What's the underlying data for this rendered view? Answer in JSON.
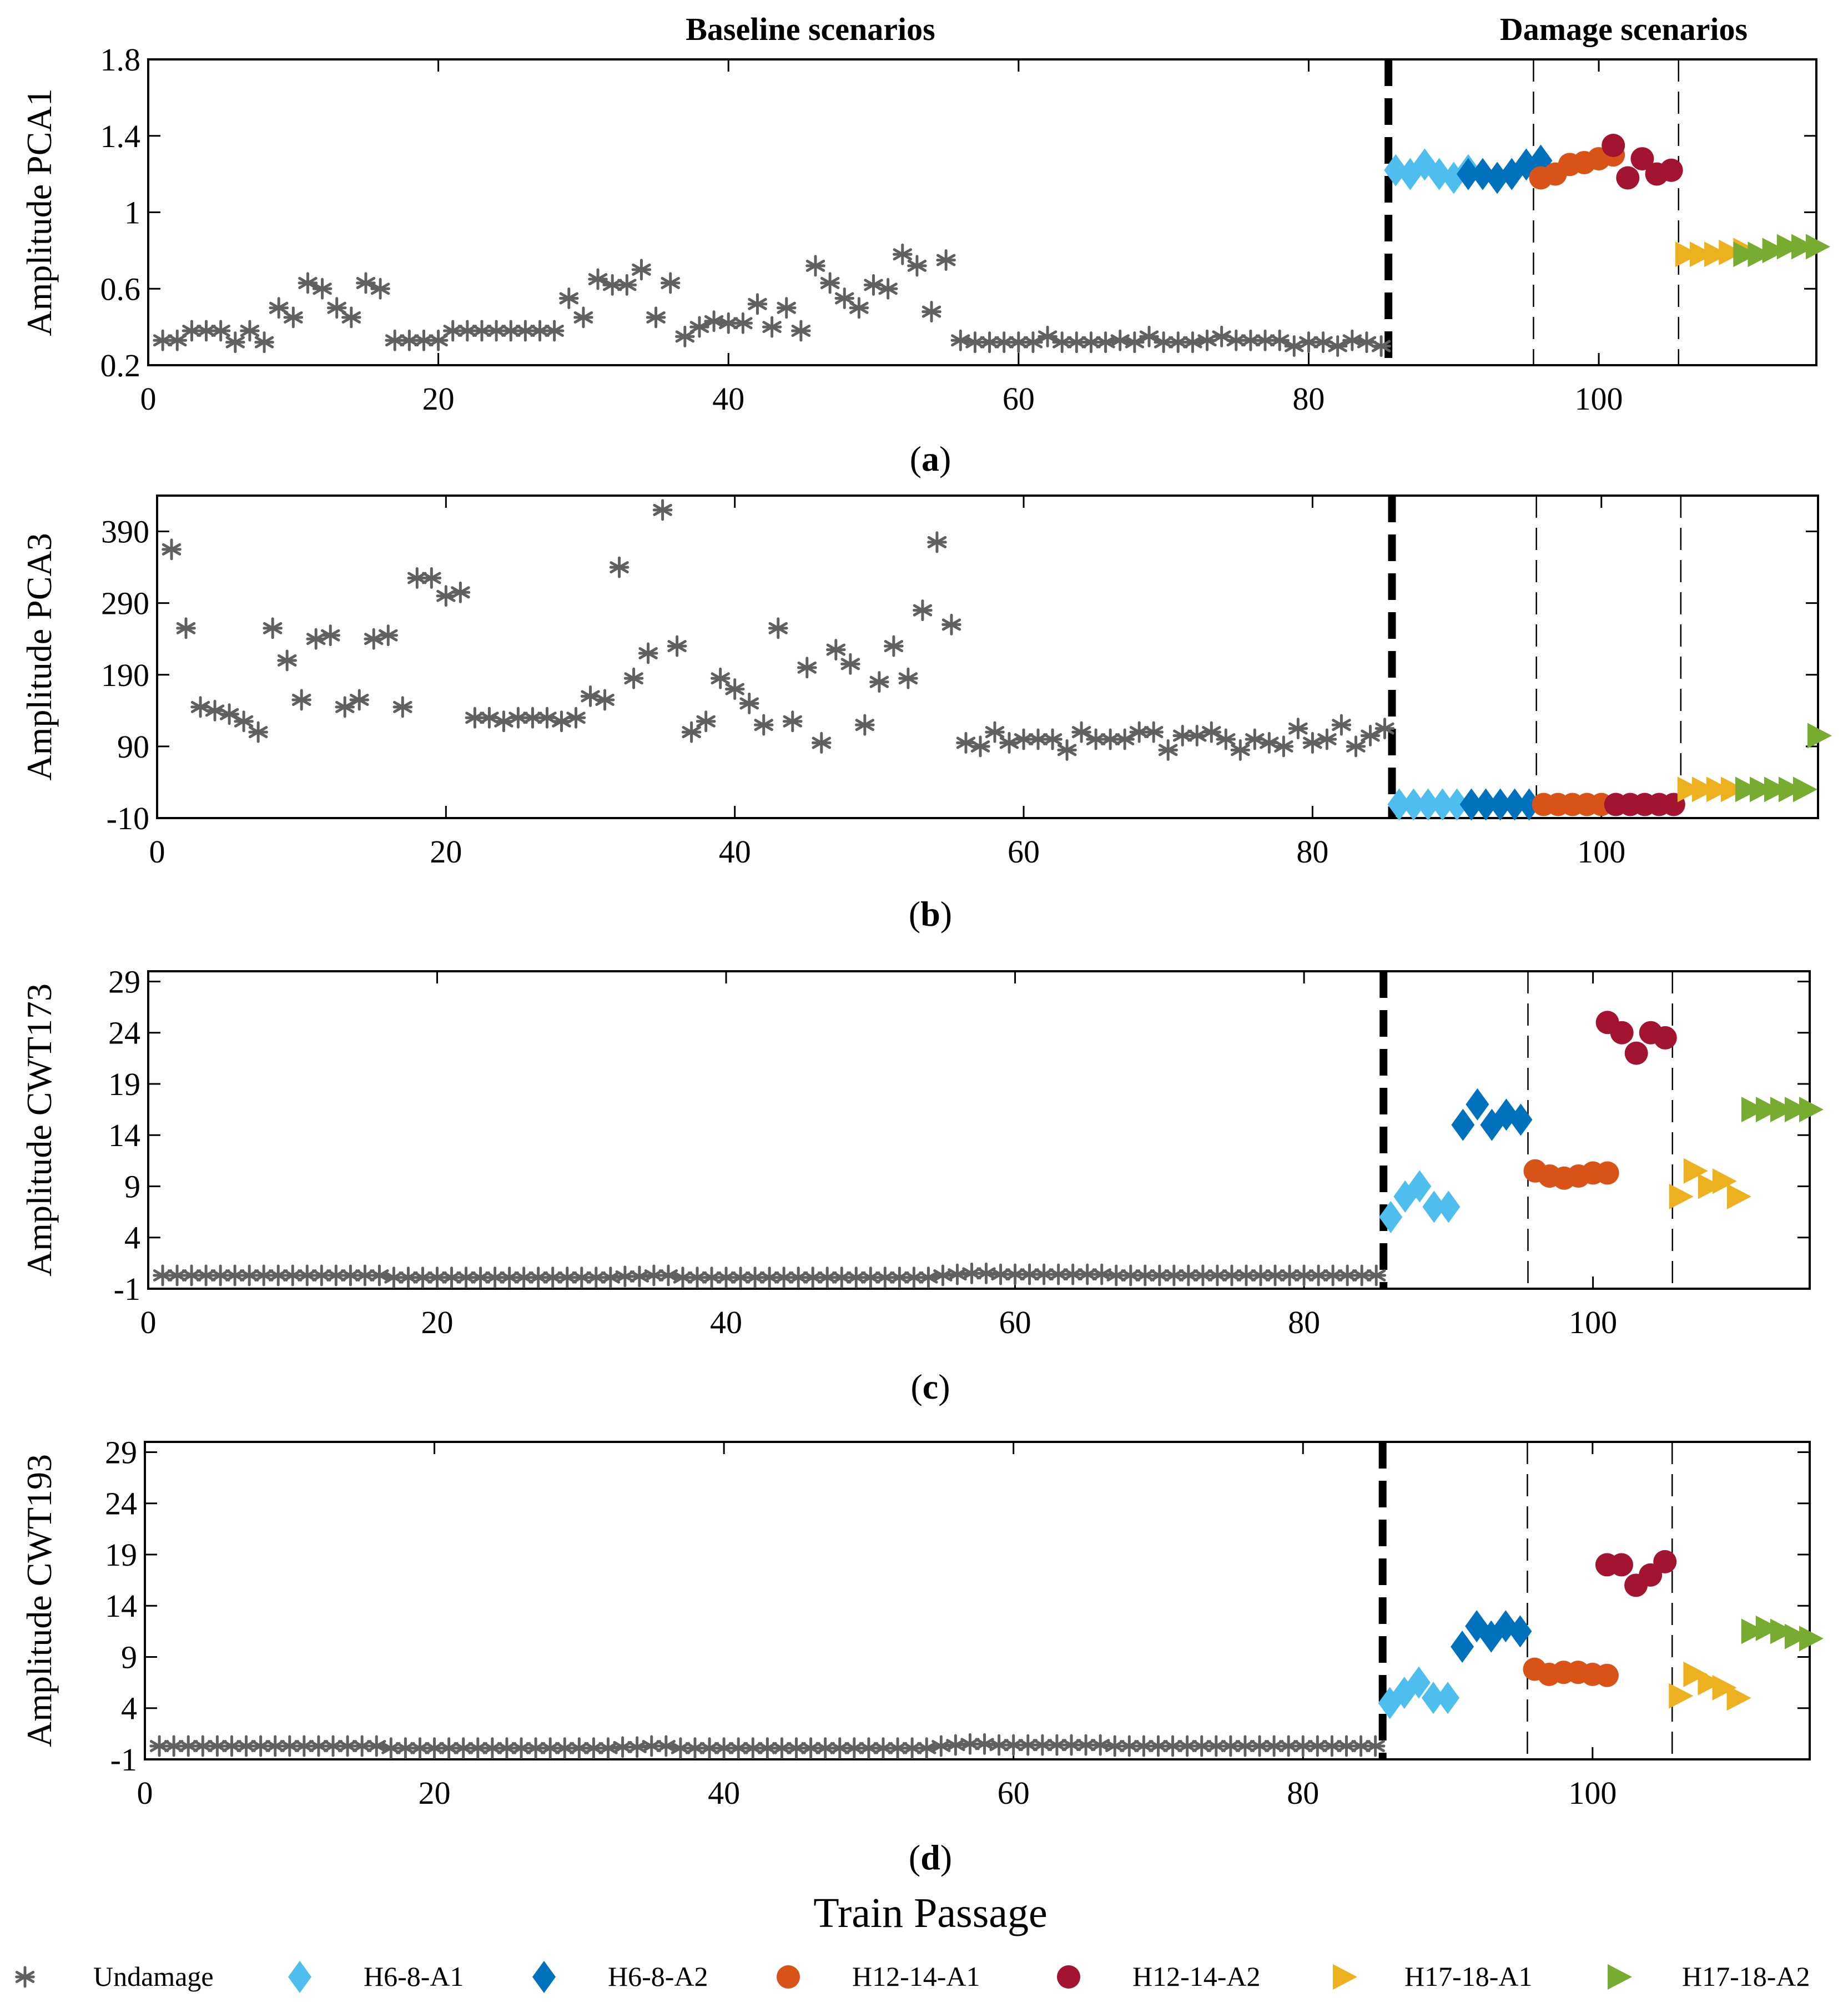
{
  "figure": {
    "header_left": "Baseline scenarios",
    "header_right": "Damage scenarios",
    "xlabel": "Train Passage"
  },
  "colors": {
    "Undamage": "#606060",
    "H6-8-A1": "#4dbeee",
    "H6-8-A2": "#0072bd",
    "H12-14-A1": "#d95319",
    "H12-14-A2": "#a2142f",
    "H17-18-A1": "#edb120",
    "H17-18-A2": "#77ac30"
  },
  "legend": [
    {
      "label": "Undamage",
      "marker": "asterisk"
    },
    {
      "label": "H6-8-A1",
      "marker": "diamond"
    },
    {
      "label": "H6-8-A2",
      "marker": "diamond"
    },
    {
      "label": "H12-14-A1",
      "marker": "circle"
    },
    {
      "label": "H12-14-A2",
      "marker": "circle"
    },
    {
      "label": "H17-18-A1",
      "marker": "triangle-right"
    },
    {
      "label": "H17-18-A2",
      "marker": "triangle-right"
    }
  ],
  "chart_data": [
    {
      "type": "scatter",
      "caption": "(a)",
      "ylabel": "Amplitude PCA1",
      "xlim": [
        0,
        115
      ],
      "ylim": [
        0.2,
        1.8
      ],
      "xticks": [
        "0",
        "20",
        "40",
        "60",
        "80",
        "100"
      ],
      "xtick_values": [
        0,
        20,
        40,
        60,
        80,
        100
      ],
      "yticks": [
        "0.2",
        "0.6",
        "1",
        "1.4",
        "1.8"
      ],
      "ytick_values": [
        0.2,
        0.6,
        1,
        1.4,
        1.8
      ],
      "baseline_divider_x": 85.5,
      "damage_dividers_x": [
        95.5,
        105.5
      ],
      "series": [
        {
          "name": "Undamage",
          "x_start": 1,
          "values": [
            0.33,
            0.33,
            0.38,
            0.38,
            0.38,
            0.32,
            0.38,
            0.32,
            0.5,
            0.45,
            0.63,
            0.6,
            0.5,
            0.45,
            0.63,
            0.6,
            0.33,
            0.33,
            0.33,
            0.33,
            0.38,
            0.38,
            0.38,
            0.38,
            0.38,
            0.38,
            0.38,
            0.38,
            0.55,
            0.45,
            0.65,
            0.62,
            0.62,
            0.7,
            0.45,
            0.63,
            0.35,
            0.4,
            0.43,
            0.42,
            0.42,
            0.52,
            0.4,
            0.5,
            0.38,
            0.72,
            0.63,
            0.55,
            0.5,
            0.62,
            0.6,
            0.78,
            0.72,
            0.48,
            0.75,
            0.33,
            0.32,
            0.32,
            0.32,
            0.32,
            0.32,
            0.35,
            0.32,
            0.32,
            0.32,
            0.32,
            0.33,
            0.32,
            0.35,
            0.32,
            0.32,
            0.32,
            0.33,
            0.35,
            0.33,
            0.33,
            0.33,
            0.33,
            0.3,
            0.32,
            0.32,
            0.3,
            0.33,
            0.32,
            0.3
          ]
        },
        {
          "name": "H6-8-A1",
          "x_start": 86,
          "values": [
            1.22,
            1.2,
            1.25,
            1.2,
            1.18,
            1.22
          ]
        },
        {
          "name": "H6-8-A2",
          "x_start": 91,
          "values": [
            1.2,
            1.2,
            1.18,
            1.2,
            1.25,
            1.27
          ]
        },
        {
          "name": "H12-14-A1",
          "x_start": 96,
          "values": [
            1.18,
            1.2,
            1.25,
            1.26,
            1.28,
            1.3
          ]
        },
        {
          "name": "H12-14-A2",
          "x_start": 101,
          "values": [
            1.35,
            1.18,
            1.28,
            1.2,
            1.22
          ]
        },
        {
          "name": "H17-18-A1",
          "x_start": 106,
          "values": [
            0.78,
            0.78,
            0.78,
            0.79,
            0.8
          ]
        },
        {
          "name": "H17-18-A2",
          "x_start": 110,
          "values": [
            0.78,
            0.78,
            0.8,
            0.82,
            0.82,
            0.82
          ]
        }
      ]
    },
    {
      "type": "scatter",
      "caption": "(b)",
      "ylabel": "Amplitude PCA3",
      "xlim": [
        0,
        115
      ],
      "ylim": [
        -10,
        440
      ],
      "xticks": [
        "0",
        "20",
        "40",
        "60",
        "80",
        "100"
      ],
      "xtick_values": [
        0,
        20,
        40,
        60,
        80,
        100
      ],
      "yticks": [
        "-10",
        "90",
        "190",
        "290",
        "390"
      ],
      "ytick_values": [
        -10,
        90,
        190,
        290,
        390
      ],
      "baseline_divider_x": 85.5,
      "damage_dividers_x": [
        95.5,
        105.5
      ],
      "series": [
        {
          "name": "Undamage",
          "x_start": 1,
          "values": [
            365,
            255,
            145,
            140,
            135,
            125,
            110,
            255,
            210,
            155,
            240,
            245,
            145,
            155,
            240,
            245,
            145,
            325,
            325,
            300,
            305,
            130,
            130,
            125,
            130,
            130,
            130,
            125,
            130,
            160,
            155,
            340,
            185,
            220,
            420,
            230,
            110,
            125,
            185,
            170,
            150,
            120,
            255,
            125,
            200,
            95,
            225,
            205,
            120,
            180,
            230,
            185,
            280,
            375,
            260,
            95,
            90,
            110,
            95,
            100,
            100,
            100,
            85,
            110,
            100,
            100,
            100,
            110,
            110,
            85,
            105,
            105,
            110,
            100,
            85,
            100,
            95,
            90,
            115,
            95,
            100,
            120,
            90,
            105,
            115
          ]
        },
        {
          "name": "H6-8-A1",
          "x_start": 86,
          "values": [
            9,
            9,
            9,
            9,
            9
          ]
        },
        {
          "name": "H6-8-A2",
          "x_start": 91,
          "values": [
            9,
            9,
            9,
            9,
            9
          ]
        },
        {
          "name": "H12-14-A1",
          "x_start": 96,
          "values": [
            9,
            9,
            9,
            9,
            9
          ]
        },
        {
          "name": "H12-14-A2",
          "x_start": 101,
          "values": [
            9,
            9,
            9,
            9,
            9
          ]
        },
        {
          "name": "H17-18-A1",
          "x_start": 106,
          "values": [
            30,
            30,
            30,
            30
          ]
        },
        {
          "name": "H17-18-A2",
          "x_start": 110,
          "values": [
            30,
            30,
            30,
            30,
            30,
            105
          ]
        }
      ]
    },
    {
      "type": "scatter",
      "caption": "(c)",
      "ylabel": "Amplitude CWT173",
      "xlim": [
        0,
        115
      ],
      "ylim": [
        -1,
        30
      ],
      "xticks": [
        "0",
        "20",
        "40",
        "60",
        "80",
        "100"
      ],
      "xtick_values": [
        0,
        20,
        40,
        60,
        80,
        100
      ],
      "yticks": [
        "-1",
        "4",
        "9",
        "14",
        "19",
        "24",
        "29"
      ],
      "ytick_values": [
        -1,
        4,
        9,
        14,
        19,
        24,
        29
      ],
      "baseline_divider_x": 85.5,
      "damage_dividers_x": [
        95.5,
        105.5
      ],
      "series": [
        {
          "name": "Undamage",
          "x_start": 1,
          "values": [
            0.3,
            0.3,
            0.3,
            0.3,
            0.3,
            0.3,
            0.3,
            0.3,
            0.3,
            0.3,
            0.3,
            0.3,
            0.3,
            0.3,
            0.3,
            0.3,
            0.1,
            0.1,
            0.1,
            0.1,
            0.1,
            0.1,
            0.1,
            0.1,
            0.1,
            0.1,
            0.1,
            0.1,
            0.1,
            0.1,
            0.1,
            0.1,
            0.2,
            0.2,
            0.3,
            0.3,
            0.1,
            0.1,
            0.1,
            0.1,
            0.1,
            0.1,
            0.1,
            0.1,
            0.1,
            0.1,
            0.1,
            0.1,
            0.1,
            0.1,
            0.1,
            0.1,
            0.1,
            0.1,
            0.3,
            0.4,
            0.5,
            0.5,
            0.4,
            0.4,
            0.4,
            0.4,
            0.4,
            0.4,
            0.4,
            0.4,
            0.3,
            0.3,
            0.3,
            0.3,
            0.3,
            0.3,
            0.3,
            0.3,
            0.3,
            0.3,
            0.3,
            0.3,
            0.3,
            0.3,
            0.3,
            0.3,
            0.3,
            0.3,
            0.3
          ]
        },
        {
          "name": "H6-8-A1",
          "x_start": 86,
          "values": [
            6,
            8,
            9,
            7,
            7
          ]
        },
        {
          "name": "H6-8-A2",
          "x_start": 91,
          "values": [
            15,
            17,
            15,
            16,
            15.5
          ]
        },
        {
          "name": "H12-14-A1",
          "x_start": 96,
          "values": [
            10.5,
            10,
            9.8,
            10,
            10.3,
            10.3
          ]
        },
        {
          "name": "H12-14-A2",
          "x_start": 101,
          "values": [
            25,
            24,
            22,
            24,
            23.5
          ]
        },
        {
          "name": "H17-18-A1",
          "x_start": 106,
          "values": [
            8,
            10.5,
            9,
            9.5,
            8
          ]
        },
        {
          "name": "H17-18-A2",
          "x_start": 111,
          "values": [
            16.5,
            16.5,
            16.5,
            16.5,
            16.5
          ]
        }
      ]
    },
    {
      "type": "scatter",
      "caption": "(d)",
      "ylabel": "Amplitude CWT193",
      "xlim": [
        0,
        115
      ],
      "ylim": [
        -1,
        30
      ],
      "xticks": [
        "0",
        "20",
        "40",
        "60",
        "80",
        "100"
      ],
      "xtick_values": [
        0,
        20,
        40,
        60,
        80,
        100
      ],
      "yticks": [
        "-1",
        "4",
        "9",
        "14",
        "19",
        "24",
        "29"
      ],
      "ytick_values": [
        -1,
        4,
        9,
        14,
        19,
        24,
        29
      ],
      "baseline_divider_x": 85.5,
      "damage_dividers_x": [
        95.5,
        105.5
      ],
      "series": [
        {
          "name": "Undamage",
          "x_start": 1,
          "values": [
            0.3,
            0.3,
            0.3,
            0.3,
            0.3,
            0.3,
            0.3,
            0.3,
            0.3,
            0.3,
            0.3,
            0.3,
            0.3,
            0.3,
            0.3,
            0.3,
            0.1,
            0.1,
            0.1,
            0.1,
            0.1,
            0.1,
            0.1,
            0.1,
            0.1,
            0.1,
            0.1,
            0.1,
            0.1,
            0.1,
            0.1,
            0.1,
            0.2,
            0.2,
            0.3,
            0.3,
            0.1,
            0.1,
            0.1,
            0.1,
            0.1,
            0.1,
            0.1,
            0.1,
            0.1,
            0.1,
            0.1,
            0.1,
            0.1,
            0.1,
            0.1,
            0.1,
            0.1,
            0.1,
            0.3,
            0.4,
            0.5,
            0.5,
            0.4,
            0.4,
            0.4,
            0.4,
            0.4,
            0.4,
            0.4,
            0.4,
            0.3,
            0.3,
            0.3,
            0.3,
            0.3,
            0.3,
            0.3,
            0.3,
            0.3,
            0.3,
            0.3,
            0.3,
            0.3,
            0.3,
            0.3,
            0.3,
            0.3,
            0.3,
            0.3
          ]
        },
        {
          "name": "H6-8-A1",
          "x_start": 86,
          "values": [
            4.5,
            5.5,
            6.5,
            5,
            5
          ]
        },
        {
          "name": "H6-8-A2",
          "x_start": 91,
          "values": [
            10,
            12,
            11,
            12,
            11.5
          ]
        },
        {
          "name": "H12-14-A1",
          "x_start": 96,
          "values": [
            7.8,
            7.3,
            7.5,
            7.5,
            7.3,
            7.2
          ]
        },
        {
          "name": "H12-14-A2",
          "x_start": 101,
          "values": [
            18,
            18,
            16,
            17,
            18.3
          ]
        },
        {
          "name": "H17-18-A1",
          "x_start": 106,
          "values": [
            5.2,
            7.3,
            6.5,
            6,
            5
          ]
        },
        {
          "name": "H17-18-A2",
          "x_start": 111,
          "values": [
            11.5,
            11.8,
            11.5,
            11,
            10.8
          ]
        }
      ]
    }
  ]
}
